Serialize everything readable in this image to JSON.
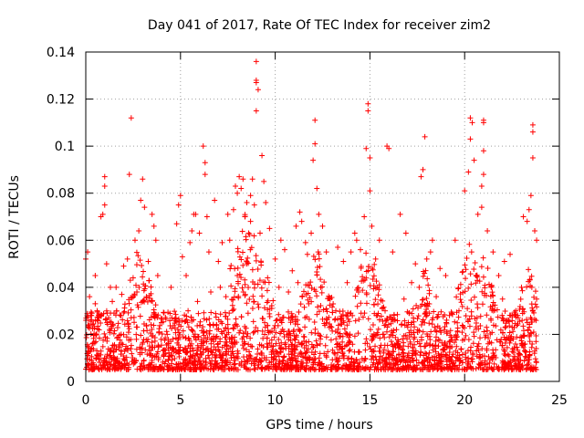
{
  "chart_data": {
    "type": "scatter",
    "title": "Day 041 of 2017, Rate Of TEC Index for receiver zim2",
    "xlabel": "GPS time / hours",
    "ylabel": "ROTI / TECUs",
    "xlim": [
      0,
      25
    ],
    "ylim": [
      0,
      0.14
    ],
    "x_ticks": [
      0,
      5,
      10,
      15,
      20,
      25
    ],
    "x_tick_labels": [
      "0",
      "5",
      "10",
      "15",
      "20",
      "25"
    ],
    "y_ticks": [
      0,
      0.02,
      0.04,
      0.06,
      0.08,
      0.1,
      0.12,
      0.14
    ],
    "y_tick_labels": [
      "0",
      "0.02",
      "0.04",
      "0.06",
      "0.08",
      "0.1",
      "0.12",
      "0.14"
    ],
    "grid": true,
    "marker": "+",
    "series_color": "#ff0000",
    "series": [
      {
        "name": "ROTI",
        "points": [
          [
            0.0,
            0.052
          ],
          [
            0.1,
            0.055
          ],
          [
            0.2,
            0.036
          ],
          [
            0.5,
            0.033
          ],
          [
            0.5,
            0.045
          ],
          [
            0.8,
            0.07
          ],
          [
            0.9,
            0.071
          ],
          [
            1.0,
            0.075
          ],
          [
            1.0,
            0.083
          ],
          [
            1.0,
            0.087
          ],
          [
            1.1,
            0.05
          ],
          [
            1.3,
            0.04
          ],
          [
            1.6,
            0.04
          ],
          [
            2.0,
            0.049
          ],
          [
            2.2,
            0.052
          ],
          [
            2.3,
            0.088
          ],
          [
            2.4,
            0.112
          ],
          [
            2.5,
            0.044
          ],
          [
            2.6,
            0.06
          ],
          [
            2.8,
            0.064
          ],
          [
            2.9,
            0.077
          ],
          [
            3.0,
            0.086
          ],
          [
            3.1,
            0.074
          ],
          [
            3.3,
            0.051
          ],
          [
            3.5,
            0.071
          ],
          [
            3.6,
            0.066
          ],
          [
            3.7,
            0.06
          ],
          [
            3.8,
            0.045
          ],
          [
            4.5,
            0.04
          ],
          [
            4.8,
            0.067
          ],
          [
            4.9,
            0.075
          ],
          [
            5.0,
            0.079
          ],
          [
            5.1,
            0.053
          ],
          [
            5.3,
            0.045
          ],
          [
            5.5,
            0.059
          ],
          [
            5.6,
            0.064
          ],
          [
            5.7,
            0.071
          ],
          [
            5.8,
            0.071
          ],
          [
            6.0,
            0.063
          ],
          [
            6.2,
            0.1
          ],
          [
            6.3,
            0.093
          ],
          [
            6.3,
            0.088
          ],
          [
            6.4,
            0.07
          ],
          [
            6.5,
            0.055
          ],
          [
            6.8,
            0.077
          ],
          [
            7.0,
            0.051
          ],
          [
            7.2,
            0.059
          ],
          [
            7.5,
            0.071
          ],
          [
            7.6,
            0.06
          ],
          [
            7.8,
            0.073
          ],
          [
            7.9,
            0.083
          ],
          [
            8.0,
            0.08
          ],
          [
            8.1,
            0.087
          ],
          [
            8.2,
            0.082
          ],
          [
            8.3,
            0.086
          ],
          [
            8.4,
            0.07
          ],
          [
            8.5,
            0.076
          ],
          [
            8.6,
            0.063
          ],
          [
            8.7,
            0.079
          ],
          [
            8.8,
            0.086
          ],
          [
            8.9,
            0.075
          ],
          [
            9.0,
            0.136
          ],
          [
            9.0,
            0.128
          ],
          [
            9.0,
            0.127
          ],
          [
            9.0,
            0.115
          ],
          [
            9.1,
            0.124
          ],
          [
            9.2,
            0.063
          ],
          [
            9.3,
            0.096
          ],
          [
            9.4,
            0.085
          ],
          [
            9.5,
            0.076
          ],
          [
            9.7,
            0.065
          ],
          [
            10.0,
            0.052
          ],
          [
            10.3,
            0.06
          ],
          [
            10.5,
            0.056
          ],
          [
            10.9,
            0.047
          ],
          [
            11.1,
            0.066
          ],
          [
            11.3,
            0.072
          ],
          [
            11.4,
            0.068
          ],
          [
            11.6,
            0.059
          ],
          [
            11.7,
            0.054
          ],
          [
            11.9,
            0.063
          ],
          [
            12.0,
            0.094
          ],
          [
            12.1,
            0.101
          ],
          [
            12.1,
            0.111
          ],
          [
            12.2,
            0.082
          ],
          [
            12.3,
            0.071
          ],
          [
            12.5,
            0.066
          ],
          [
            12.7,
            0.055
          ],
          [
            13.3,
            0.057
          ],
          [
            13.6,
            0.051
          ],
          [
            14.0,
            0.055
          ],
          [
            14.2,
            0.063
          ],
          [
            14.3,
            0.06
          ],
          [
            14.5,
            0.056
          ],
          [
            14.7,
            0.07
          ],
          [
            14.8,
            0.099
          ],
          [
            14.9,
            0.118
          ],
          [
            14.9,
            0.115
          ],
          [
            15.0,
            0.095
          ],
          [
            15.0,
            0.081
          ],
          [
            15.1,
            0.066
          ],
          [
            15.3,
            0.052
          ],
          [
            15.5,
            0.06
          ],
          [
            15.9,
            0.1
          ],
          [
            16.0,
            0.099
          ],
          [
            16.2,
            0.055
          ],
          [
            16.6,
            0.071
          ],
          [
            16.9,
            0.063
          ],
          [
            17.4,
            0.05
          ],
          [
            17.7,
            0.087
          ],
          [
            17.8,
            0.09
          ],
          [
            17.9,
            0.104
          ],
          [
            18.0,
            0.052
          ],
          [
            18.2,
            0.055
          ],
          [
            18.3,
            0.06
          ],
          [
            18.7,
            0.048
          ],
          [
            19.0,
            0.045
          ],
          [
            19.5,
            0.06
          ],
          [
            20.0,
            0.081
          ],
          [
            20.2,
            0.089
          ],
          [
            20.3,
            0.112
          ],
          [
            20.3,
            0.103
          ],
          [
            20.4,
            0.11
          ],
          [
            20.5,
            0.094
          ],
          [
            20.7,
            0.071
          ],
          [
            20.9,
            0.083
          ],
          [
            20.9,
            0.074
          ],
          [
            21.0,
            0.111
          ],
          [
            21.0,
            0.11
          ],
          [
            21.0,
            0.098
          ],
          [
            21.0,
            0.088
          ],
          [
            21.2,
            0.064
          ],
          [
            21.5,
            0.055
          ],
          [
            21.8,
            0.045
          ],
          [
            22.1,
            0.051
          ],
          [
            22.4,
            0.054
          ],
          [
            23.1,
            0.07
          ],
          [
            23.3,
            0.068
          ],
          [
            23.4,
            0.073
          ],
          [
            23.5,
            0.079
          ],
          [
            23.6,
            0.095
          ],
          [
            23.6,
            0.109
          ],
          [
            23.6,
            0.106
          ],
          [
            23.7,
            0.064
          ],
          [
            23.8,
            0.06
          ],
          [
            23.8,
            0.035
          ],
          [
            0.3,
            0.028
          ],
          [
            0.6,
            0.03
          ],
          [
            1.4,
            0.034
          ],
          [
            1.9,
            0.037
          ],
          [
            2.7,
            0.038
          ],
          [
            3.2,
            0.036
          ],
          [
            4.0,
            0.025
          ],
          [
            4.3,
            0.02
          ],
          [
            4.6,
            0.018
          ],
          [
            5.4,
            0.03
          ],
          [
            5.9,
            0.034
          ],
          [
            6.6,
            0.038
          ],
          [
            7.1,
            0.04
          ],
          [
            7.4,
            0.036
          ],
          [
            8.0,
            0.045
          ],
          [
            8.5,
            0.05
          ],
          [
            9.6,
            0.044
          ],
          [
            10.2,
            0.04
          ],
          [
            10.7,
            0.038
          ],
          [
            11.2,
            0.042
          ],
          [
            12.4,
            0.04
          ],
          [
            12.9,
            0.035
          ],
          [
            13.2,
            0.03
          ],
          [
            13.8,
            0.042
          ],
          [
            14.4,
            0.038
          ],
          [
            15.4,
            0.04
          ],
          [
            15.8,
            0.03
          ],
          [
            16.4,
            0.022
          ],
          [
            16.8,
            0.035
          ],
          [
            17.2,
            0.042
          ],
          [
            17.6,
            0.04
          ],
          [
            18.5,
            0.036
          ],
          [
            19.2,
            0.028
          ],
          [
            19.7,
            0.03
          ],
          [
            20.6,
            0.045
          ],
          [
            21.4,
            0.04
          ],
          [
            22.0,
            0.035
          ],
          [
            22.7,
            0.03
          ],
          [
            23.0,
            0.04
          ]
        ]
      }
    ],
    "dense_band": {
      "description": "bulk of measurements between ROTI 0.005 and 0.03 across the whole day",
      "x_range": [
        0,
        23.8
      ],
      "y_range": [
        0.005,
        0.03
      ],
      "bursts": [
        {
          "x": 2.8,
          "ymax": 0.06
        },
        {
          "x": 8.5,
          "ymax": 0.075
        },
        {
          "x": 9.1,
          "ymax": 0.06
        },
        {
          "x": 12.2,
          "ymax": 0.06
        },
        {
          "x": 14.9,
          "ymax": 0.06
        },
        {
          "x": 17.9,
          "ymax": 0.05
        },
        {
          "x": 20.3,
          "ymax": 0.06
        },
        {
          "x": 21.0,
          "ymax": 0.055
        },
        {
          "x": 23.4,
          "ymax": 0.05
        }
      ]
    }
  }
}
